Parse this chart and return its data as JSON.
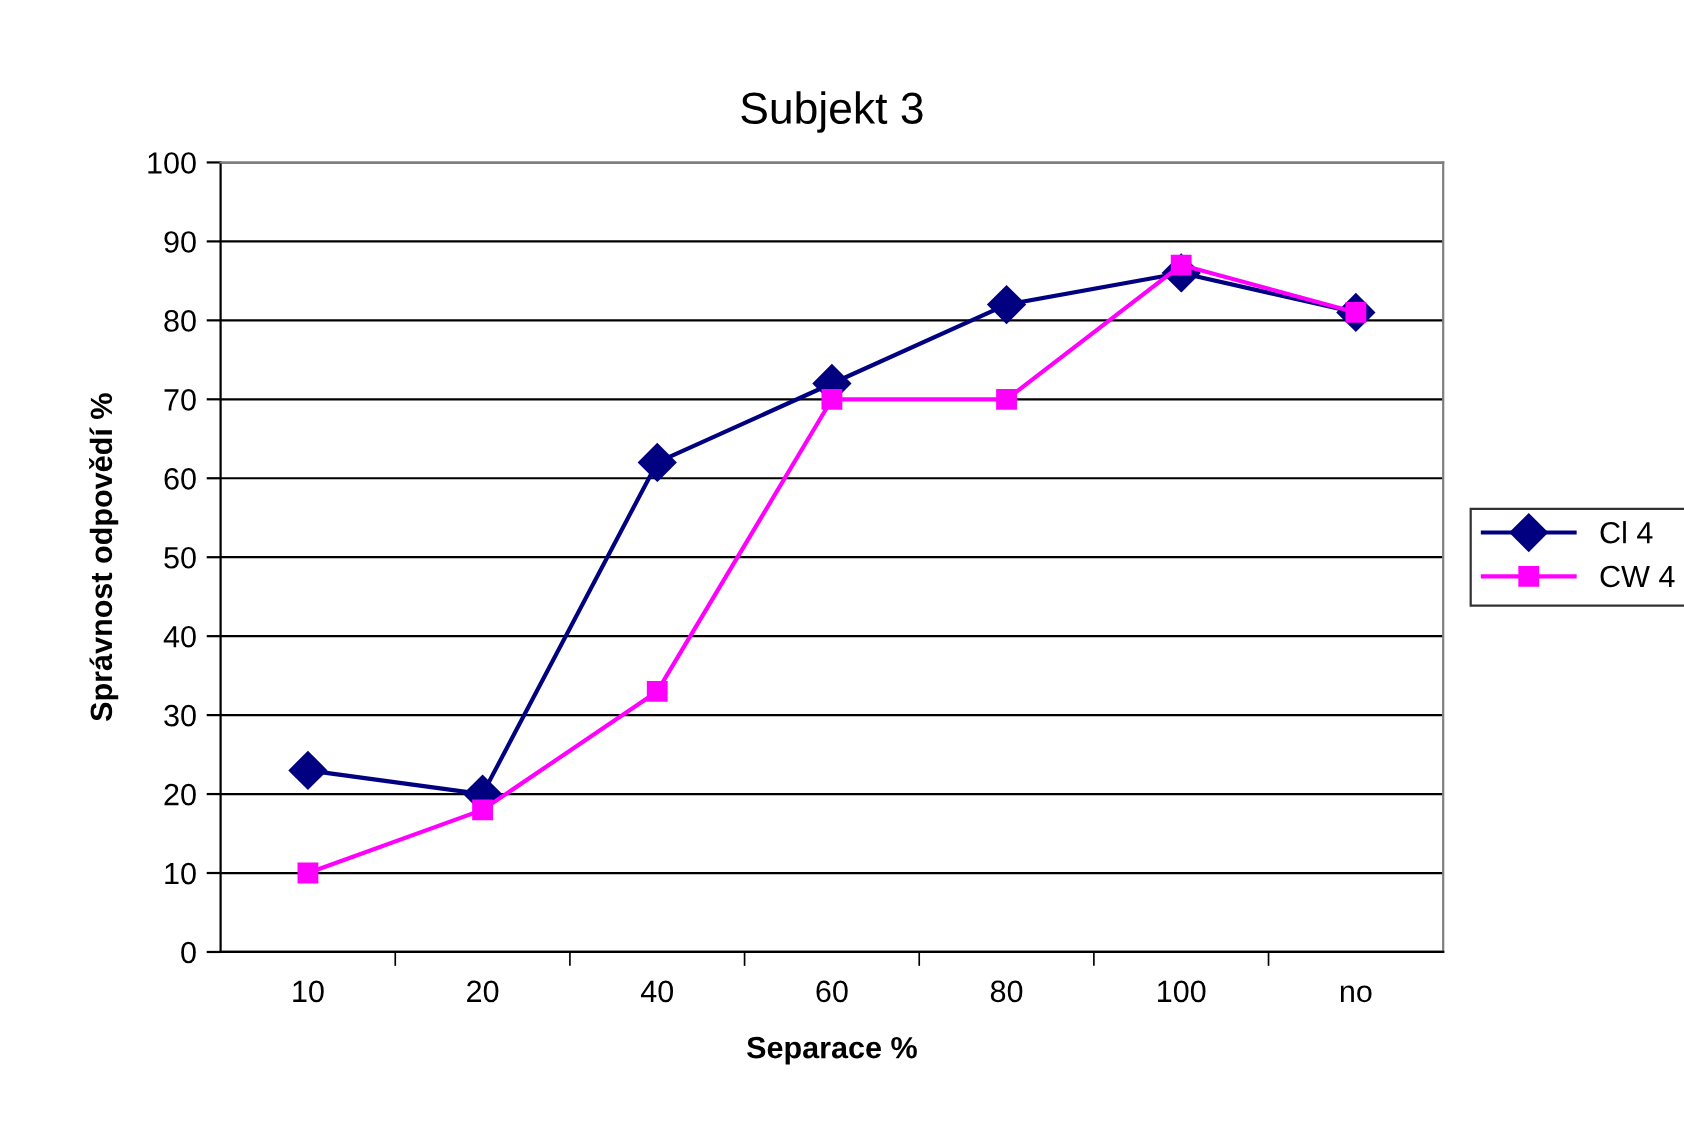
{
  "chart_data": {
    "type": "line",
    "title": "Subjekt 3",
    "xlabel": "Separace %",
    "ylabel": "Správnost odpovědí %",
    "categories": [
      "10",
      "20",
      "40",
      "60",
      "80",
      "100",
      "no"
    ],
    "series": [
      {
        "name": "Cl 4",
        "color": "#000080",
        "marker": "diamond",
        "values": [
          23,
          20,
          62,
          72,
          82,
          86,
          81
        ]
      },
      {
        "name": "CW 4",
        "color": "#ff00ff",
        "marker": "square",
        "values": [
          10,
          18,
          33,
          70,
          70,
          87,
          81
        ]
      }
    ],
    "ylim": [
      0,
      100
    ],
    "yticks": [
      0,
      10,
      20,
      30,
      40,
      50,
      60,
      70,
      80,
      90,
      100
    ],
    "grid": "y",
    "legend": "right",
    "line_style": "solid"
  }
}
